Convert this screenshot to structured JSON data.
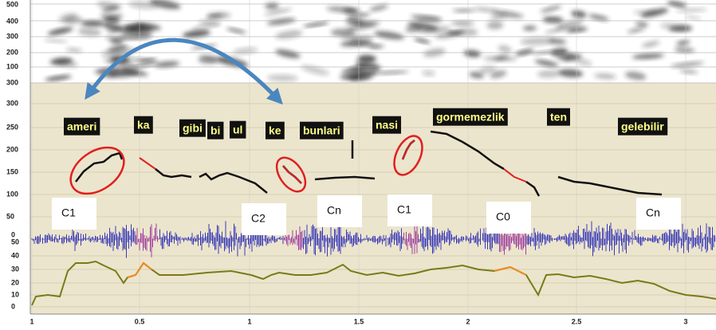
{
  "spectrogram_axis": [
    "500",
    "400",
    "300",
    "200",
    "100",
    "300"
  ],
  "pitch_axis": [
    "300",
    "250",
    "200",
    "150",
    "100",
    "50"
  ],
  "intensity_axis": [
    "0",
    "50",
    "40",
    "30",
    "20",
    "10",
    "0"
  ],
  "time_axis": [
    "1",
    "0.5",
    "1",
    "1.5",
    "2",
    "2.5",
    "3"
  ],
  "words": [
    "ameri",
    "ka",
    "gibi",
    "bi",
    "ul",
    "ke",
    "bunlari",
    "nasi",
    "gormemezlik",
    "ten",
    "gelebilir"
  ],
  "segment_labels": [
    "C1",
    "C2",
    "Cn",
    "C1",
    "C0",
    "Cn"
  ]
}
